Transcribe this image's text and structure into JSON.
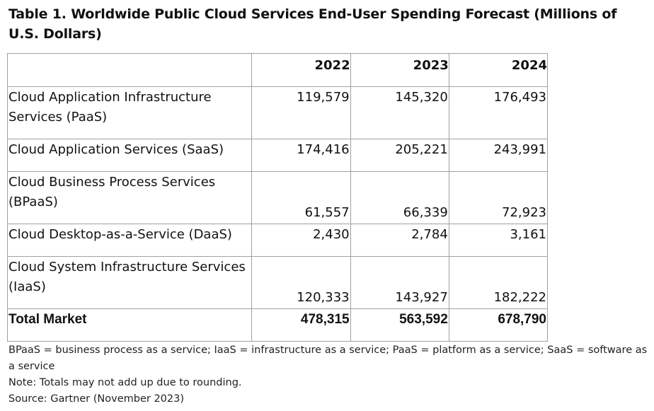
{
  "table": {
    "title": "Table 1. Worldwide Public Cloud Services End-User Spending Forecast (Millions of U.S. Dollars)",
    "header_label": "",
    "years": [
      "2022",
      "2023",
      "2024"
    ],
    "rows": [
      {
        "label": "Cloud Application Infrastructure Services (PaaS)",
        "values": [
          "119,579",
          "145,320",
          "176,493"
        ]
      },
      {
        "label": "Cloud Application Services (SaaS)",
        "values": [
          "174,416",
          "205,221",
          "243,991"
        ]
      },
      {
        "label": "Cloud Business Process Services (BPaaS)",
        "values": [
          "61,557",
          "66,339",
          "72,923"
        ]
      },
      {
        "label": "Cloud Desktop-as-a-Service (DaaS)",
        "values": [
          "2,430",
          "2,784",
          "3,161"
        ]
      },
      {
        "label": "Cloud System Infrastructure Services (IaaS)",
        "values": [
          "120,333",
          "143,927",
          "182,222"
        ]
      }
    ],
    "total": {
      "label": "Total Market",
      "values": [
        "478,315",
        "563,592",
        "678,790"
      ]
    }
  },
  "footnotes": {
    "abbreviations": "BPaaS = business process as a service; IaaS = infrastructure as a service; PaaS = platform as a service; SaaS = software as a service",
    "note": "Note: Totals may not add up due to rounding.",
    "source": "Source: Gartner (November 2023)"
  }
}
